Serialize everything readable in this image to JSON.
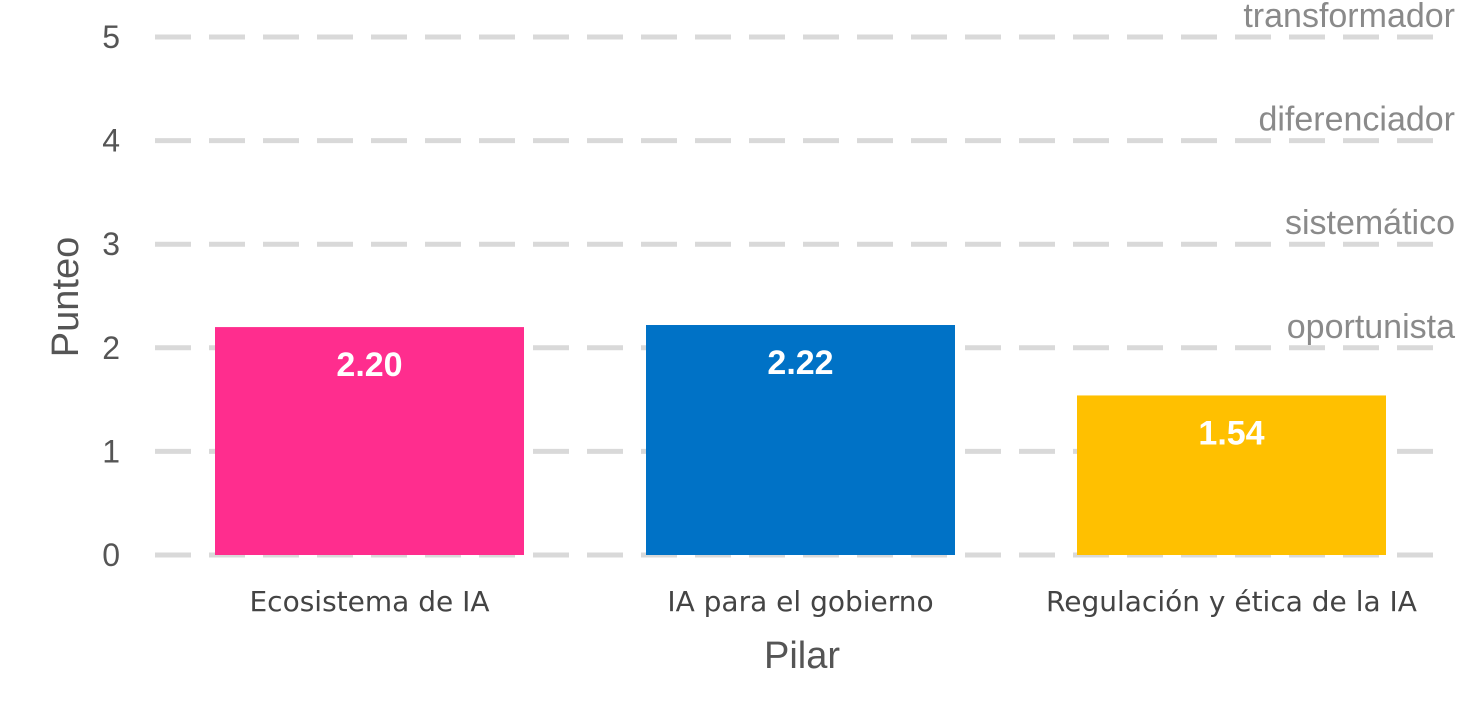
{
  "chart_data": {
    "type": "bar",
    "categories": [
      "Ecosistema de IA",
      "IA para el gobierno",
      "Regulación y ética de la IA"
    ],
    "values": [
      2.2,
      2.22,
      1.54
    ],
    "value_labels": [
      "2.20",
      "2.22",
      "1.54"
    ],
    "colors": [
      "#ff2d8e",
      "#0072c6",
      "#ffc000"
    ],
    "xlabel": "Pilar",
    "ylabel": "Punteo",
    "ylim": [
      0,
      5
    ],
    "yticks": [
      "0",
      "1",
      "2",
      "3",
      "4",
      "5"
    ],
    "grid": "dashed horizontal",
    "level_labels": [
      {
        "text": "oportunista",
        "y": 2
      },
      {
        "text": "sistemático",
        "y": 3
      },
      {
        "text": "diferenciador",
        "y": 4
      },
      {
        "text": "transformador",
        "y": 5
      }
    ]
  }
}
